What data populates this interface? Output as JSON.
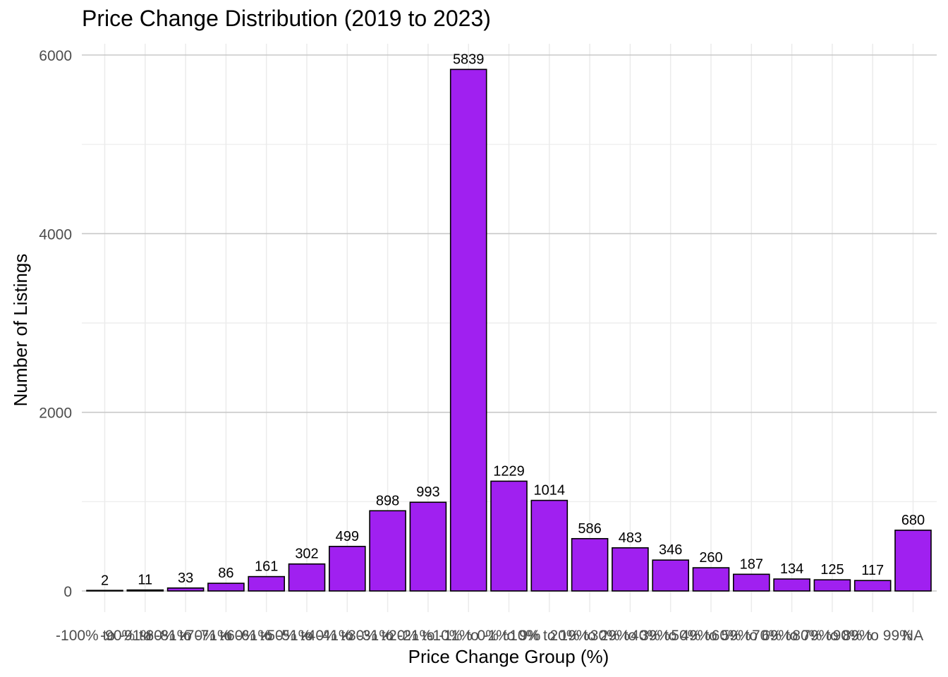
{
  "chart_data": {
    "type": "bar",
    "title": "Price Change Distribution (2019 to 2023)",
    "xlabel": "Price Change Group (%)",
    "ylabel": "Number of Listings",
    "categories": [
      "-100% to -91%",
      "-90% to -81%",
      "-80% to -71%",
      "-70% to -61%",
      "-60% to -51%",
      "-50% to -41%",
      "-40% to -31%",
      "-30% to -21%",
      "-20% to -11%",
      "-10% to -1%",
      "0% to 9%",
      "10% to 19%",
      "20% to 29%",
      "30% to 39%",
      "40% to 49%",
      "50% to 59%",
      "60% to 69%",
      "70% to 79%",
      "80% to 89%",
      "90% to 99%",
      "NA"
    ],
    "values": [
      2,
      11,
      33,
      86,
      161,
      302,
      499,
      898,
      993,
      5839,
      1229,
      1014,
      586,
      483,
      346,
      260,
      187,
      134,
      125,
      117,
      680
    ],
    "ylim": [
      0,
      6000
    ],
    "yticks": [
      0,
      2000,
      4000,
      6000
    ],
    "grid": true,
    "legend": "none",
    "bar_color": "#A020F0",
    "bar_outline": "#000000"
  }
}
